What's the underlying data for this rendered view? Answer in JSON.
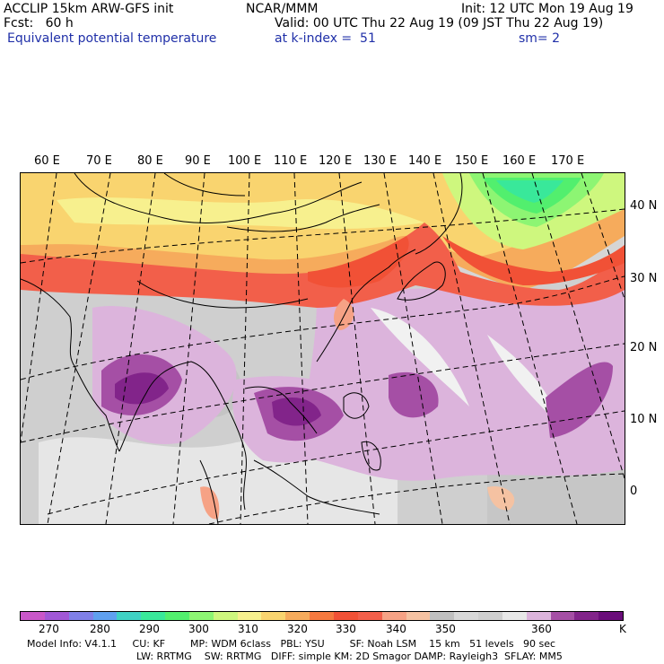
{
  "header": {
    "title_left": "ACCLIP 15km ARW-GFS init",
    "title_center": "NCAR/MMM",
    "init": "Init: 12 UTC Mon 19 Aug 19",
    "fcst": "Fcst:   60 h",
    "valid": "Valid: 00 UTC Thu 22 Aug 19 (09 JST Thu 22 Aug 19)",
    "field": "Equivalent potential temperature",
    "level": "at k-index =  51",
    "smooth": "sm= 2"
  },
  "lon_labels": [
    "60 E",
    "70 E",
    "80 E",
    "90 E",
    "100 E",
    "110 E",
    "120 E",
    "130 E",
    "140 E",
    "150 E",
    "160 E",
    "170 E"
  ],
  "lat_labels": [
    "40 N",
    "30 N",
    "20 N",
    "10 N",
    "0"
  ],
  "colorbar": {
    "colors": [
      "#c957c9",
      "#a158d6",
      "#8080e8",
      "#5fa0ef",
      "#3fd2c4",
      "#39e89a",
      "#52ef6e",
      "#8df573",
      "#cef77e",
      "#f7f08e",
      "#f9d46f",
      "#f6ab5c",
      "#f5793f",
      "#f15136",
      "#f25f4a",
      "#f6a285",
      "#f5c2a2",
      "#c0c0c0",
      "#d8d8d8",
      "#cfcfcf",
      "#e8e8e8",
      "#dcb4dc",
      "#a54fa5",
      "#82248a",
      "#6a0d7a"
    ],
    "labels": [
      "270",
      "280",
      "290",
      "300",
      "310",
      "320",
      "330",
      "340",
      "350",
      "360"
    ],
    "unit": "K"
  },
  "footer": {
    "line1": "Model Info: V4.1.1     CU: KF        MP: WDM 6class   PBL: YSU        SF: Noah LSM    15 km   51 levels   90 sec",
    "line2": "LW: RRTMG    SW: RRTMG   DIFF: simple KM: 2D Smagor DAMP: Rayleigh3  SFLAY: MM5"
  }
}
